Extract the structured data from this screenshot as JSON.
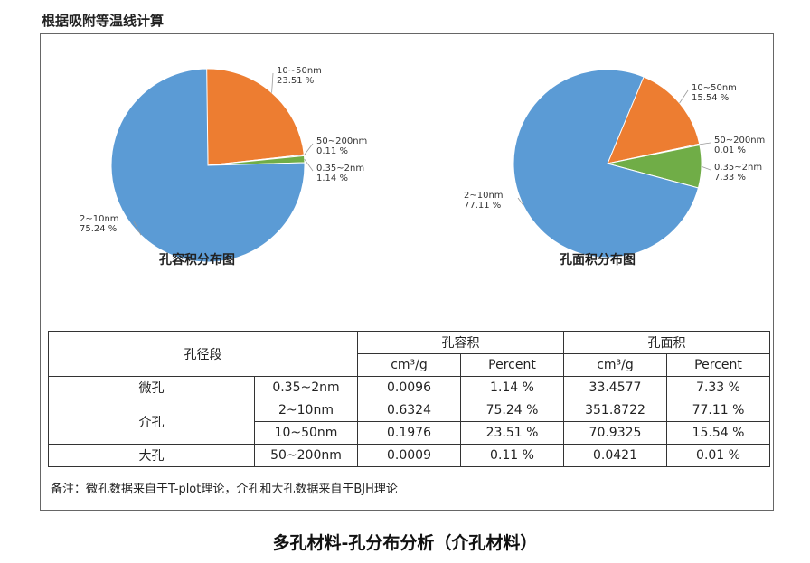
{
  "heading": "根据吸附等温线计算",
  "chart_data": [
    {
      "type": "pie",
      "title": "孔容积分布图",
      "slices": [
        {
          "label": "2~10nm",
          "value": 75.24,
          "text": "75.24 %",
          "color": "#5b9bd5"
        },
        {
          "label": "10~50nm",
          "value": 23.51,
          "text": "23.51 %",
          "color": "#ed7d31"
        },
        {
          "label": "50~200nm",
          "value": 0.11,
          "text": "0.11 %",
          "color": "#595959"
        },
        {
          "label": "0.35~2nm",
          "value": 1.14,
          "text": "1.14 %",
          "color": "#70ad47"
        }
      ]
    },
    {
      "type": "pie",
      "title": "孔面积分布图",
      "slices": [
        {
          "label": "2~10nm",
          "value": 77.11,
          "text": "77.11 %",
          "color": "#5b9bd5"
        },
        {
          "label": "10~50nm",
          "value": 15.54,
          "text": "15.54 %",
          "color": "#ed7d31"
        },
        {
          "label": "50~200nm",
          "value": 0.01,
          "text": "0.01 %",
          "color": "#595959"
        },
        {
          "label": "0.35~2nm",
          "value": 7.33,
          "text": "7.33 %",
          "color": "#70ad47"
        }
      ]
    }
  ],
  "table": {
    "header": {
      "segment": "孔径段",
      "volume": "孔容积",
      "area": "孔面积",
      "unit_volume": "cm³/g",
      "percent_volume": "Percent",
      "unit_area": "cm³/g",
      "percent_area": "Percent"
    },
    "groups": {
      "micro": "微孔",
      "meso": "介孔",
      "macro": "大孔"
    },
    "rows": [
      {
        "range": "0.35~2nm",
        "vol": "0.0096",
        "vol_pct": "1.14 %",
        "area": "33.4577",
        "area_pct": "7.33 %"
      },
      {
        "range": "2~10nm",
        "vol": "0.6324",
        "vol_pct": "75.24 %",
        "area": "351.8722",
        "area_pct": "77.11 %"
      },
      {
        "range": "10~50nm",
        "vol": "0.1976",
        "vol_pct": "23.51 %",
        "area": "70.9325",
        "area_pct": "15.54 %"
      },
      {
        "range": "50~200nm",
        "vol": "0.0009",
        "vol_pct": "0.11 %",
        "area": "0.0421",
        "area_pct": "0.01 %"
      }
    ]
  },
  "note": "备注：微孔数据来自于T-plot理论，介孔和大孔数据来自于BJH理论",
  "caption": "多孔材料-孔分布分析（介孔材料）"
}
